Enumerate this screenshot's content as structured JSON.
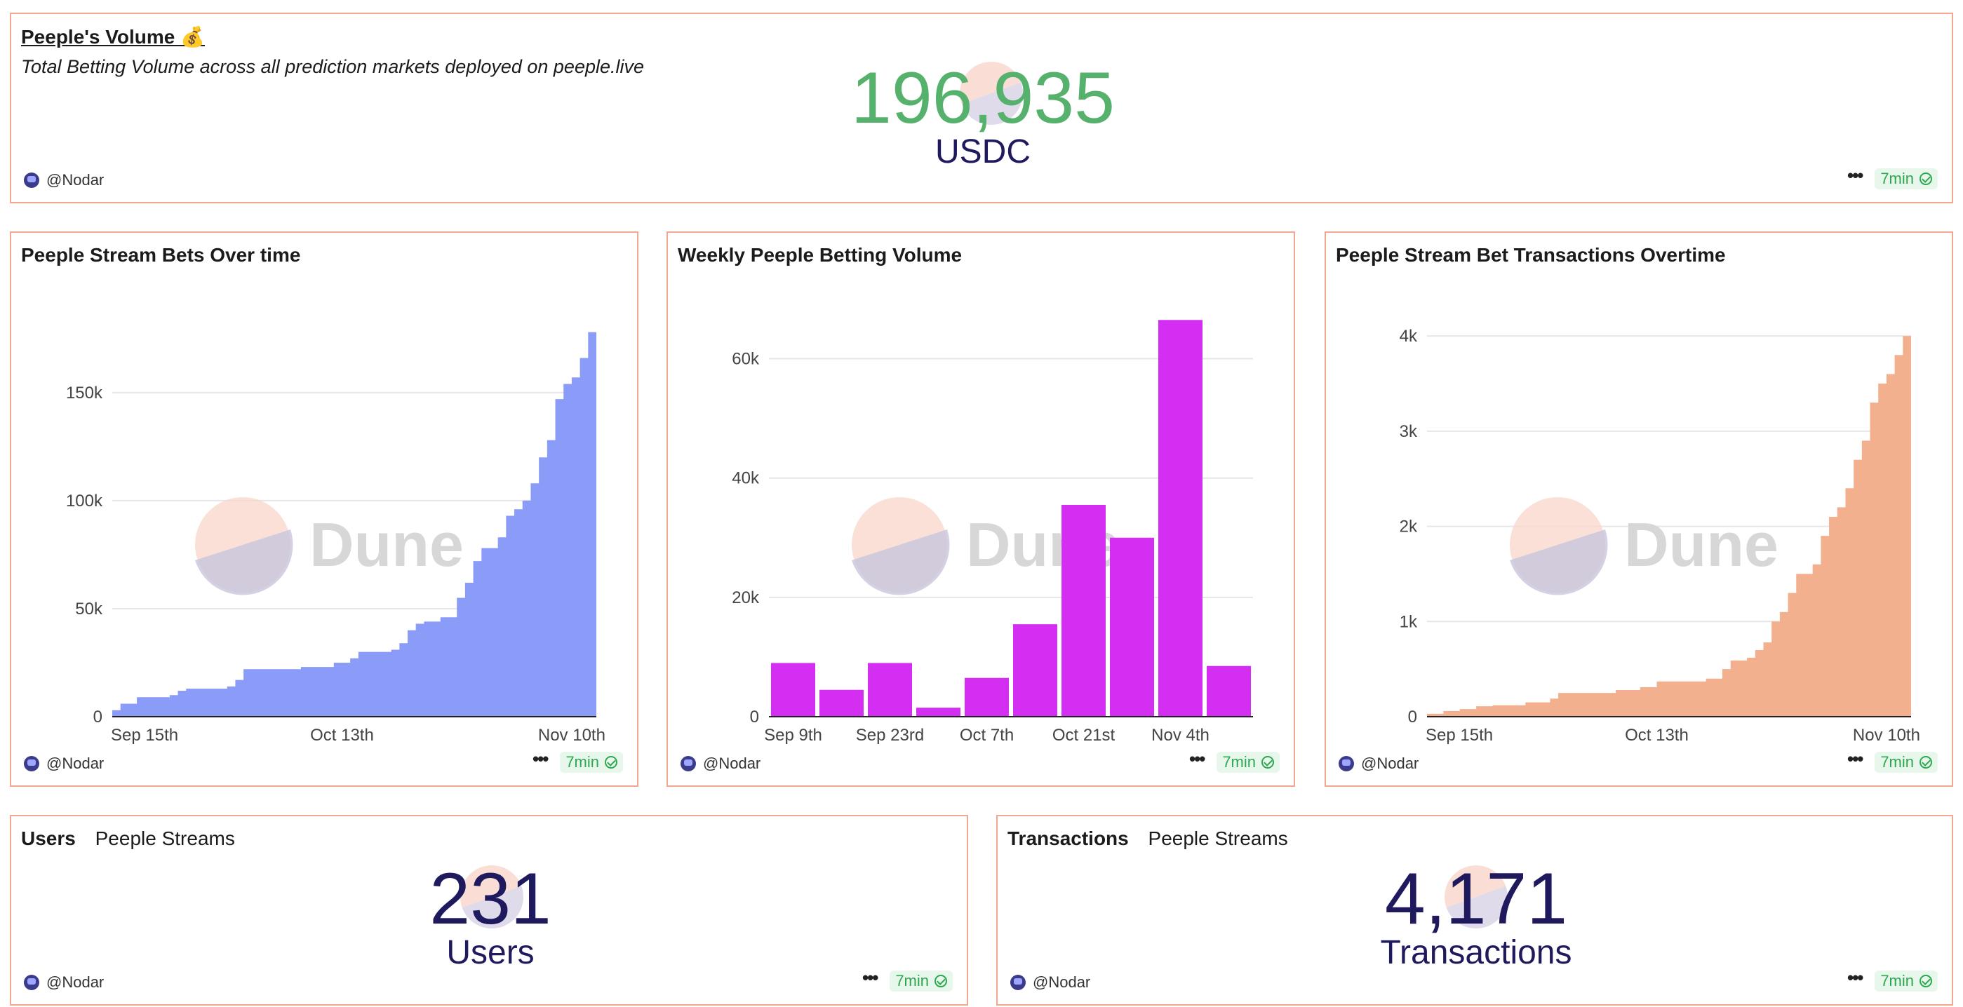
{
  "colors": {
    "panel_border": "#f1a88f",
    "volume_green": "#56b16d",
    "counter_navy": "#1f1a5e",
    "blue_area": "#8a9cf7",
    "magenta_bar": "#d42ef2",
    "orange_area": "#f3b08f",
    "status_green": "#2ea84f"
  },
  "volume_panel": {
    "title": "Peeple's Volume 💰",
    "subtitle": "Total Betting Volume across all prediction markets deployed on peeple.live",
    "value": "196,935",
    "unit": "USDC",
    "author": "@Nodar",
    "status": "7min",
    "menu_icon": "more-dots-icon",
    "status_icon": "check-circle-icon"
  },
  "watermark": {
    "text": "Dune"
  },
  "charts": [
    {
      "title": "Peeple Stream Bets Over time",
      "author": "@Nodar",
      "status": "7min",
      "chart_data": {
        "type": "area",
        "color": "#8a9cf7",
        "x_ticks": [
          "Sep 15th",
          "Oct 13th",
          "Nov 10th"
        ],
        "y_ticks": [
          "0",
          "50k",
          "100k",
          "150k"
        ],
        "ylim": [
          0,
          185000
        ],
        "x_domain": [
          "2024-09-15",
          "2024-11-13"
        ],
        "x_tick_dates": [
          "2024-09-15",
          "2024-10-13",
          "2024-11-10"
        ],
        "grid": true,
        "points": [
          [
            "2024-09-15",
            3000
          ],
          [
            "2024-09-16",
            6000
          ],
          [
            "2024-09-18",
            9000
          ],
          [
            "2024-09-22",
            10000
          ],
          [
            "2024-09-23",
            12000
          ],
          [
            "2024-09-24",
            13000
          ],
          [
            "2024-09-29",
            14000
          ],
          [
            "2024-09-30",
            17000
          ],
          [
            "2024-10-01",
            22000
          ],
          [
            "2024-10-08",
            23000
          ],
          [
            "2024-10-12",
            25000
          ],
          [
            "2024-10-14",
            27000
          ],
          [
            "2024-10-15",
            30000
          ],
          [
            "2024-10-19",
            31000
          ],
          [
            "2024-10-20",
            34000
          ],
          [
            "2024-10-21",
            40000
          ],
          [
            "2024-10-22",
            43000
          ],
          [
            "2024-10-23",
            44000
          ],
          [
            "2024-10-25",
            46000
          ],
          [
            "2024-10-27",
            55000
          ],
          [
            "2024-10-28",
            62000
          ],
          [
            "2024-10-29",
            72000
          ],
          [
            "2024-10-30",
            78000
          ],
          [
            "2024-11-01",
            83000
          ],
          [
            "2024-11-02",
            93000
          ],
          [
            "2024-11-03",
            96000
          ],
          [
            "2024-11-04",
            100000
          ],
          [
            "2024-11-05",
            108000
          ],
          [
            "2024-11-06",
            120000
          ],
          [
            "2024-11-07",
            128000
          ],
          [
            "2024-11-08",
            147000
          ],
          [
            "2024-11-09",
            154000
          ],
          [
            "2024-11-10",
            157000
          ],
          [
            "2024-11-11",
            166000
          ],
          [
            "2024-11-12",
            178000
          ],
          [
            "2024-11-13",
            185000
          ]
        ]
      }
    },
    {
      "title": "Weekly Peeple Betting Volume",
      "author": "@Nodar",
      "status": "7min",
      "chart_data": {
        "type": "bar",
        "color": "#d42ef2",
        "categories": [
          "Sep 9th",
          "Sep 16th",
          "Sep 23rd",
          "Sep 30th",
          "Oct 7th",
          "Oct 14th",
          "Oct 21st",
          "Oct 28th",
          "Nov 4th",
          "Nov 11th"
        ],
        "x_tick_labels": [
          "Sep 9th",
          "Sep 23rd",
          "Oct 7th",
          "Oct 21st",
          "Nov 4th"
        ],
        "values": [
          9000,
          4500,
          9000,
          1500,
          6500,
          15500,
          35500,
          30000,
          66500,
          8500
        ],
        "y_ticks": [
          "0",
          "20k",
          "40k",
          "60k"
        ],
        "ylim": [
          0,
          67000
        ],
        "grid": true
      }
    },
    {
      "title": "Peeple Stream Bet Transactions Overtime",
      "author": "@Nodar",
      "status": "7min",
      "chart_data": {
        "type": "area",
        "color": "#f3b08f",
        "x_ticks": [
          "Sep 15th",
          "Oct 13th",
          "Nov 10th"
        ],
        "y_ticks": [
          "0",
          "1k",
          "2k",
          "3k",
          "4k"
        ],
        "ylim": [
          0,
          4200
        ],
        "x_domain": [
          "2024-09-15",
          "2024-11-13"
        ],
        "x_tick_dates": [
          "2024-09-15",
          "2024-10-13",
          "2024-11-10"
        ],
        "grid": true,
        "points": [
          [
            "2024-09-15",
            30
          ],
          [
            "2024-09-17",
            60
          ],
          [
            "2024-09-19",
            80
          ],
          [
            "2024-09-21",
            110
          ],
          [
            "2024-09-23",
            120
          ],
          [
            "2024-09-27",
            150
          ],
          [
            "2024-09-30",
            190
          ],
          [
            "2024-10-01",
            250
          ],
          [
            "2024-10-08",
            280
          ],
          [
            "2024-10-11",
            310
          ],
          [
            "2024-10-13",
            370
          ],
          [
            "2024-10-19",
            400
          ],
          [
            "2024-10-21",
            500
          ],
          [
            "2024-10-22",
            590
          ],
          [
            "2024-10-24",
            620
          ],
          [
            "2024-10-25",
            700
          ],
          [
            "2024-10-26",
            780
          ],
          [
            "2024-10-27",
            1000
          ],
          [
            "2024-10-28",
            1100
          ],
          [
            "2024-10-29",
            1300
          ],
          [
            "2024-10-30",
            1500
          ],
          [
            "2024-11-01",
            1600
          ],
          [
            "2024-11-02",
            1900
          ],
          [
            "2024-11-03",
            2100
          ],
          [
            "2024-11-04",
            2200
          ],
          [
            "2024-11-05",
            2400
          ],
          [
            "2024-11-06",
            2700
          ],
          [
            "2024-11-07",
            2900
          ],
          [
            "2024-11-08",
            3300
          ],
          [
            "2024-11-09",
            3500
          ],
          [
            "2024-11-10",
            3600
          ],
          [
            "2024-11-11",
            3800
          ],
          [
            "2024-11-12",
            4000
          ],
          [
            "2024-11-13",
            4100
          ]
        ]
      }
    }
  ],
  "users_panel": {
    "tabs": [
      "Users",
      "Peeple Streams"
    ],
    "value": "231",
    "unit": "Users",
    "author": "@Nodar",
    "status": "7min"
  },
  "transactions_panel": {
    "tabs": [
      "Transactions",
      "Peeple Streams"
    ],
    "value": "4,171",
    "unit": "Transactions",
    "author": "@Nodar",
    "status": "7min"
  }
}
